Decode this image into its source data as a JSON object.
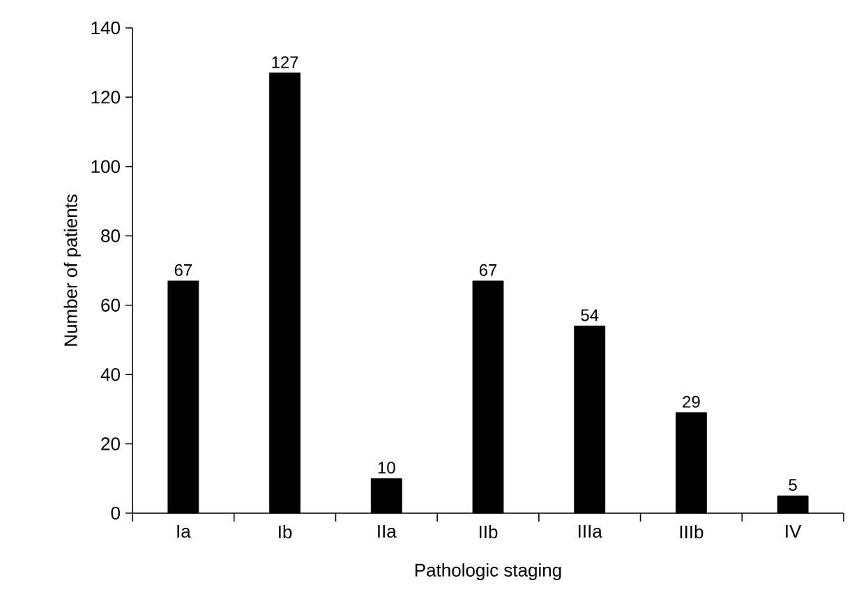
{
  "chart_data": {
    "type": "bar",
    "xlabel": "Pathologic staging",
    "ylabel": "Number of patients",
    "categories": [
      "Ia",
      "Ib",
      "IIa",
      "IIb",
      "IIIa",
      "IIIb",
      "IV"
    ],
    "values": [
      67,
      127,
      10,
      67,
      54,
      29,
      5
    ],
    "color": "#000000",
    "ylim": [
      0,
      140
    ],
    "yticks": [
      0,
      20,
      40,
      60,
      80,
      100,
      120,
      140
    ],
    "data_labels": true
  }
}
